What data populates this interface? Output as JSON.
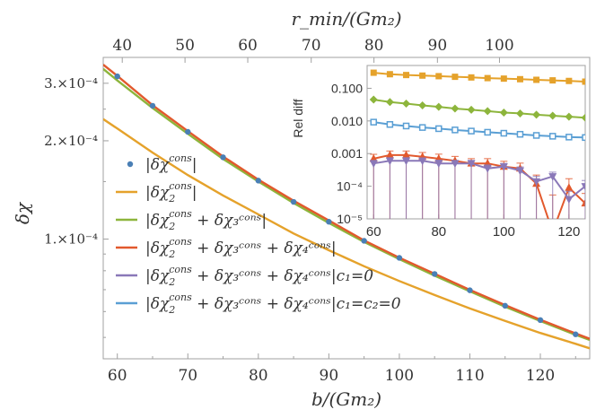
{
  "chart_data": [
    {
      "type": "line",
      "title": "",
      "xlabel": "b/(Gm₂)",
      "ylabel": "δχ",
      "top_xlabel": "r_min/(Gm₂)",
      "yscale": "log",
      "xlim": [
        58,
        127
      ],
      "ylim": [
        4.3e-05,
        0.00036
      ],
      "x_ticks": [
        60,
        70,
        80,
        90,
        100,
        110,
        120
      ],
      "y_tick_labels": [
        {
          "value": 0.0003,
          "label": "3.×10⁻⁴"
        },
        {
          "value": 0.0002,
          "label": "2.×10⁻⁴"
        },
        {
          "value": 0.0001,
          "label": "1.×10⁻⁴"
        }
      ],
      "top_axis": {
        "tick_labels": [
          "40",
          "50",
          "60",
          "70",
          "80",
          "90",
          "100"
        ],
        "b_positions": [
          60.7,
          69.6,
          78.5,
          87.5,
          96.4,
          105.4,
          114.2
        ]
      },
      "legend_position": "lower-left",
      "series": [
        {
          "name": "|δχ^cons|",
          "legend": {
            "base": "|δχ",
            "sup": "cons",
            "tail": "|",
            "sub": ""
          },
          "color": "#4a7fb5",
          "marker": "dot",
          "x": [
            60,
            65,
            70,
            75,
            80,
            85,
            90,
            95,
            100,
            105,
            110,
            115,
            120,
            125
          ],
          "y": [
            0.000315,
            0.000256,
            0.000213,
            0.000178,
            0.000151,
            0.00013,
            0.000113,
            9.88e-05,
            8.76e-05,
            7.82e-05,
            6.97e-05,
            6.25e-05,
            5.65e-05,
            5.11e-05
          ]
        },
        {
          "name": "|δχ₂^cons|",
          "legend": {
            "base": "|δχ",
            "sub": "2",
            "sup": "cons",
            "tail": "|"
          },
          "color": "#e5a22b",
          "x": [
            58,
            60,
            65,
            70,
            75,
            80,
            85,
            90,
            95,
            100,
            105,
            110,
            115,
            120,
            125,
            127
          ],
          "y": [
            0.000233,
            0.000218,
            0.000184,
            0.000157,
            0.000136,
            0.000119,
            0.000104,
            9.24e-05,
            8.26e-05,
            7.44e-05,
            6.74e-05,
            6.13e-05,
            5.62e-05,
            5.16e-05,
            4.78e-05,
            4.63e-05
          ]
        },
        {
          "name": "|δχ₂^cons + δχ₃^cons|",
          "legend": {
            "base": "|δχ",
            "sub": "2",
            "sup": "cons",
            "tail": " + δχ₃ᶜᵒⁿˢ|"
          },
          "color": "#8db53c",
          "x": [
            58,
            60,
            65,
            70,
            75,
            80,
            85,
            90,
            95,
            100,
            105,
            110,
            115,
            120,
            125,
            127
          ],
          "y": [
            0.000332,
            0.000306,
            0.000252,
            0.00021,
            0.000176,
            0.00015,
            0.000129,
            0.000112,
            9.8e-05,
            8.68e-05,
            7.73e-05,
            6.92e-05,
            6.21e-05,
            5.61e-05,
            5.09e-05,
            4.91e-05
          ]
        },
        {
          "name": "|δχ₂^cons + δχ₃^cons + δχ₄^cons|",
          "legend": {
            "base": "|δχ",
            "sub": "2",
            "sup": "cons",
            "tail": " + δχ₃ᶜᵒⁿˢ + δχ₄ᶜᵒⁿˢ|"
          },
          "color": "#e2592d",
          "x": [
            58,
            60,
            65,
            70,
            75,
            80,
            85,
            90,
            95,
            100,
            105,
            110,
            115,
            120,
            125,
            127
          ],
          "y": [
            0.000342,
            0.000316,
            0.000257,
            0.000214,
            0.000179,
            0.000152,
            0.000131,
            0.000114,
            9.9e-05,
            8.77e-05,
            7.83e-05,
            6.99e-05,
            6.28e-05,
            5.66e-05,
            5.14e-05,
            4.95e-05
          ]
        },
        {
          "name": "|δχ₂^cons + δχ₃^cons + δχ₄^cons|_{c₁=0}",
          "legend": {
            "base": "|δχ",
            "sub": "2",
            "sup": "cons",
            "tail": " + δχ₃ᶜᵒⁿˢ + δχ₄ᶜᵒⁿˢ|c₁=0"
          },
          "color": "#8a78b8",
          "x": [
            60,
            125
          ],
          "y": [
            0.000315,
            5.11e-05
          ]
        },
        {
          "name": "|δχ₂^cons + δχ₃^cons + δχ₄^cons|_{c₁=c₂=0}",
          "legend": {
            "base": "|δχ",
            "sub": "2",
            "sup": "cons",
            "tail": " + δχ₃ᶜᵒⁿˢ + δχ₄ᶜᵒⁿˢ|c₁=c₂=0"
          },
          "color": "#5a9fd4",
          "x": [
            60,
            125
          ],
          "y": [
            0.000315,
            5.11e-05
          ]
        }
      ]
    },
    {
      "type": "line",
      "title": "",
      "xlabel": "",
      "ylabel": "Rel diff",
      "yscale": "log",
      "xlim": [
        58,
        125
      ],
      "ylim": [
        1e-05,
        0.5
      ],
      "x_ticks": [
        60,
        80,
        100,
        120
      ],
      "y_tick_labels": [
        "0.100",
        "0.010",
        "0.001",
        "10⁻⁴",
        "10⁻⁵"
      ],
      "y_tick_values": [
        0.1,
        0.01,
        0.001,
        0.0001,
        1e-05
      ],
      "x": [
        60,
        65,
        70,
        75,
        80,
        85,
        90,
        95,
        100,
        105,
        110,
        115,
        120,
        125
      ],
      "series": [
        {
          "name": "orange squares",
          "color": "#e5a22b",
          "marker": "square",
          "y": [
            0.3,
            0.27,
            0.255,
            0.245,
            0.235,
            0.225,
            0.215,
            0.205,
            0.198,
            0.19,
            0.182,
            0.175,
            0.168,
            0.16
          ]
        },
        {
          "name": "green diamonds",
          "color": "#8db53c",
          "marker": "diamond",
          "y": [
            0.045,
            0.038,
            0.034,
            0.03,
            0.027,
            0.024,
            0.022,
            0.02,
            0.018,
            0.017,
            0.0155,
            0.0145,
            0.0135,
            0.0125
          ]
        },
        {
          "name": "blue open squares",
          "color": "#5a9fd4",
          "marker": "open-square",
          "y": [
            0.0092,
            0.0078,
            0.007,
            0.0063,
            0.0058,
            0.0053,
            0.0049,
            0.0045,
            0.0042,
            0.0039,
            0.0036,
            0.0034,
            0.0032,
            0.0031
          ]
        },
        {
          "name": "red triangles",
          "color": "#e2592d",
          "marker": "triangle-up",
          "y": [
            0.0007,
            0.0009,
            0.0009,
            0.0008,
            0.0007,
            0.0006,
            0.0005,
            0.0005,
            0.0004,
            0.00035,
            0.00012,
            4e-06,
            9e-05,
            3e-05
          ],
          "err": [
            0.00025,
            0.0003,
            0.0003,
            0.00028,
            0.00026,
            0.00022,
            0.0002,
            0.0002,
            0.00018,
            0.00016,
            0.0001,
            5e-05,
            8e-05,
            3e-05
          ]
        },
        {
          "name": "purple triangles",
          "color": "#8a78b8",
          "marker": "triangle-down",
          "y": [
            0.0005,
            0.0006,
            0.0006,
            0.0006,
            0.0005,
            0.0005,
            0.0005,
            0.00035,
            0.0004,
            0.0003,
            0.00014,
            0.0002,
            4e-05,
            0.0001
          ],
          "err": [
            0.00012,
            0.00015,
            0.00015,
            0.00014,
            0.00013,
            0.00012,
            0.00012,
            0.0001,
            0.0001,
            9e-05,
            6e-05,
            7e-05,
            3e-05,
            5e-05
          ]
        }
      ]
    }
  ]
}
